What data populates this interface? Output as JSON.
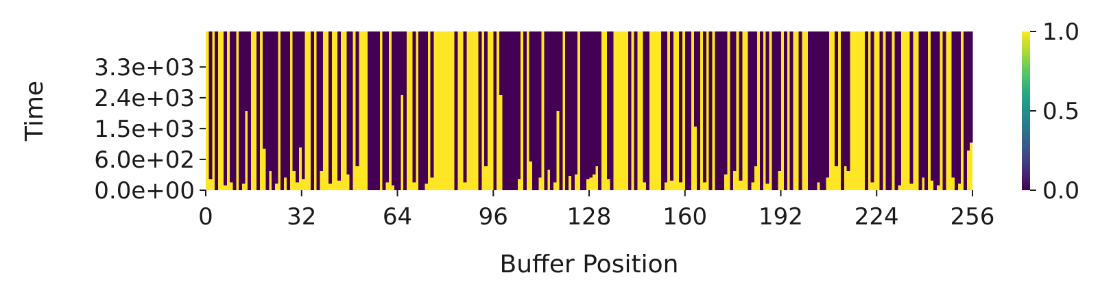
{
  "chart_data": {
    "type": "heatmap",
    "title": "",
    "xlabel": "Buffer Position",
    "ylabel": "Time",
    "x_ticks": [
      0,
      32,
      64,
      96,
      128,
      160,
      192,
      224,
      256
    ],
    "xlim": [
      0,
      256
    ],
    "y_ticks": [
      "0.0e+00",
      "6.0e+02",
      "1.5e+03",
      "2.4e+03",
      "3.3e+03"
    ],
    "colormap": "viridis",
    "vmin": 0.0,
    "vmax": 1.0,
    "colorbar_ticks": [
      "0.0",
      "0.5",
      "1.0"
    ],
    "colors": {
      "low": "#440154",
      "high": "#fde725"
    },
    "n_positions": 256,
    "time_fraction_of_final": [
      1.0,
      0.07,
      1.0,
      0.0,
      1.0,
      1.0,
      0.03,
      1.0,
      0.05,
      0.0,
      1.0,
      0.0,
      0.04,
      0.5,
      0.0,
      1.0,
      1.0,
      0.0,
      1.0,
      0.26,
      0.0,
      0.12,
      0.0,
      0.04,
      1.0,
      0.0,
      0.08,
      0.0,
      1.0,
      0.12,
      0.05,
      0.27,
      0.07,
      1.0,
      1.0,
      0.0,
      1.0,
      0.0,
      0.12,
      1.0,
      1.0,
      0.04,
      1.0,
      1.0,
      0.06,
      1.0,
      1.0,
      0.1,
      0.0,
      1.0,
      0.15,
      1.0,
      1.0,
      1.0,
      0.0,
      0.0,
      0.0,
      0.0,
      1.0,
      0.0,
      0.05,
      1.0,
      0.03,
      0.0,
      0.0,
      0.6,
      0.0,
      1.0,
      1.0,
      0.05,
      1.0,
      0.0,
      0.0,
      0.04,
      1.0,
      0.08,
      1.0,
      1.0,
      1.0,
      1.0,
      1.0,
      1.0,
      1.0,
      0.0,
      1.0,
      1.0,
      0.05,
      1.0,
      1.0,
      1.0,
      1.0,
      0.0,
      1.0,
      0.15,
      1.0,
      1.0,
      0.0,
      1.0,
      0.6,
      0.0,
      0.0,
      0.0,
      0.0,
      0.0,
      0.07,
      1.0,
      0.0,
      1.0,
      0.18,
      0.0,
      0.0,
      0.08,
      1.0,
      0.0,
      0.13,
      0.0,
      0.05,
      0.5,
      0.0,
      1.0,
      0.0,
      0.09,
      0.0,
      0.1,
      1.0,
      0.0,
      0.0,
      0.07,
      0.08,
      0.1,
      0.15,
      0.0,
      1.0,
      1.0,
      0.07,
      0.0,
      1.0,
      1.0,
      1.0,
      1.0,
      1.0,
      0.0,
      1.0,
      0.0,
      1.0,
      1.0,
      0.05,
      0.0,
      1.0,
      1.0,
      1.0,
      1.0,
      0.0,
      0.05,
      1.0,
      0.06,
      1.0,
      1.0,
      0.05,
      1.0,
      0.0,
      0.0,
      1.0,
      0.4,
      0.0,
      1.0,
      0.05,
      1.0,
      0.0,
      1.0,
      0.0,
      0.0,
      0.0,
      0.1,
      1.0,
      0.0,
      0.12,
      1.0,
      0.06,
      1.0,
      1.0,
      0.0,
      0.05,
      0.15,
      1.0,
      0.0,
      1.0,
      0.04,
      1.0,
      0.0,
      0.0,
      0.12,
      1.0,
      0.0,
      1.0,
      0.0,
      1.0,
      1.0,
      0.0,
      1.0,
      1.0,
      0.0,
      0.0,
      0.0,
      0.05,
      0.0,
      0.0,
      0.08,
      1.0,
      1.0,
      0.15,
      1.0,
      0.0,
      0.15,
      0.12,
      1.0,
      1.0,
      1.0,
      1.0,
      1.0,
      0.0,
      1.0,
      0.05,
      1.0,
      1.0,
      0.0,
      1.0,
      0.0,
      0.0,
      1.0,
      0.0,
      0.03,
      1.0,
      1.0,
      1.0,
      0.04,
      1.0,
      1.0,
      0.0,
      0.08,
      0.0,
      1.0,
      0.06,
      0.0,
      0.03,
      1.0,
      0.0,
      1.0,
      1.0,
      0.08,
      0.0,
      0.04,
      1.0,
      0.0,
      0.25,
      0.3
    ],
    "note_unused": ""
  }
}
